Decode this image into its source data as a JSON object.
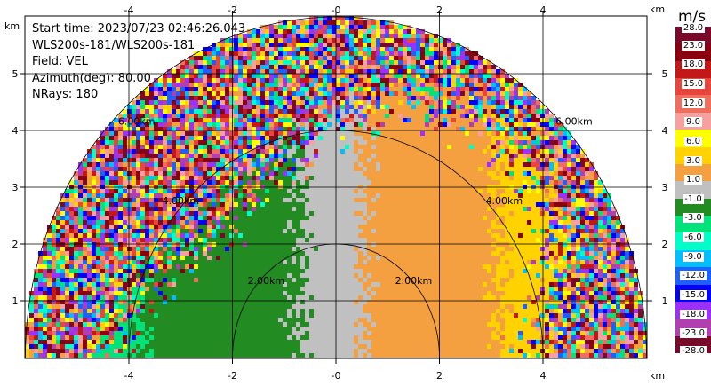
{
  "info": {
    "start_time": "Start time: 2023/07/23 02:46:26.043",
    "instrument": "WLS200s-181/WLS200s-181",
    "field": "Field: VEL",
    "azimuth": "Azimuth(deg): 80.00",
    "nrays": "NRays: 180"
  },
  "axes": {
    "unit": "km",
    "x_ticks": [
      "-4",
      "-2",
      "-0",
      "2",
      "4"
    ],
    "y_ticks": [
      "1",
      "2",
      "3",
      "4",
      "5"
    ],
    "range_labels": [
      "2.00km",
      "4.00km",
      "6.00km"
    ]
  },
  "colorbar": {
    "unit": "m/s",
    "labels": [
      "28.0",
      "23.0",
      "18.0",
      "15.0",
      "12.0",
      "9.0",
      "6.0",
      "3.0",
      "1.0",
      "-1.0",
      "-3.0",
      "-6.0",
      "-9.0",
      "-12.0",
      "-15.0",
      "-18.0",
      "-23.0",
      "-28.0"
    ],
    "colors": [
      "#7a0a2a",
      "#8a0010",
      "#c41818",
      "#e8453c",
      "#f06e5e",
      "#f6a0a0",
      "#ffff00",
      "#ffd200",
      "#f4a040",
      "#c0c0c0",
      "#228b22",
      "#00e27a",
      "#00ffc8",
      "#00bfff",
      "#1e60ff",
      "#0000ff",
      "#9b30ff",
      "#b040b0",
      "#7a0a2a"
    ]
  }
}
